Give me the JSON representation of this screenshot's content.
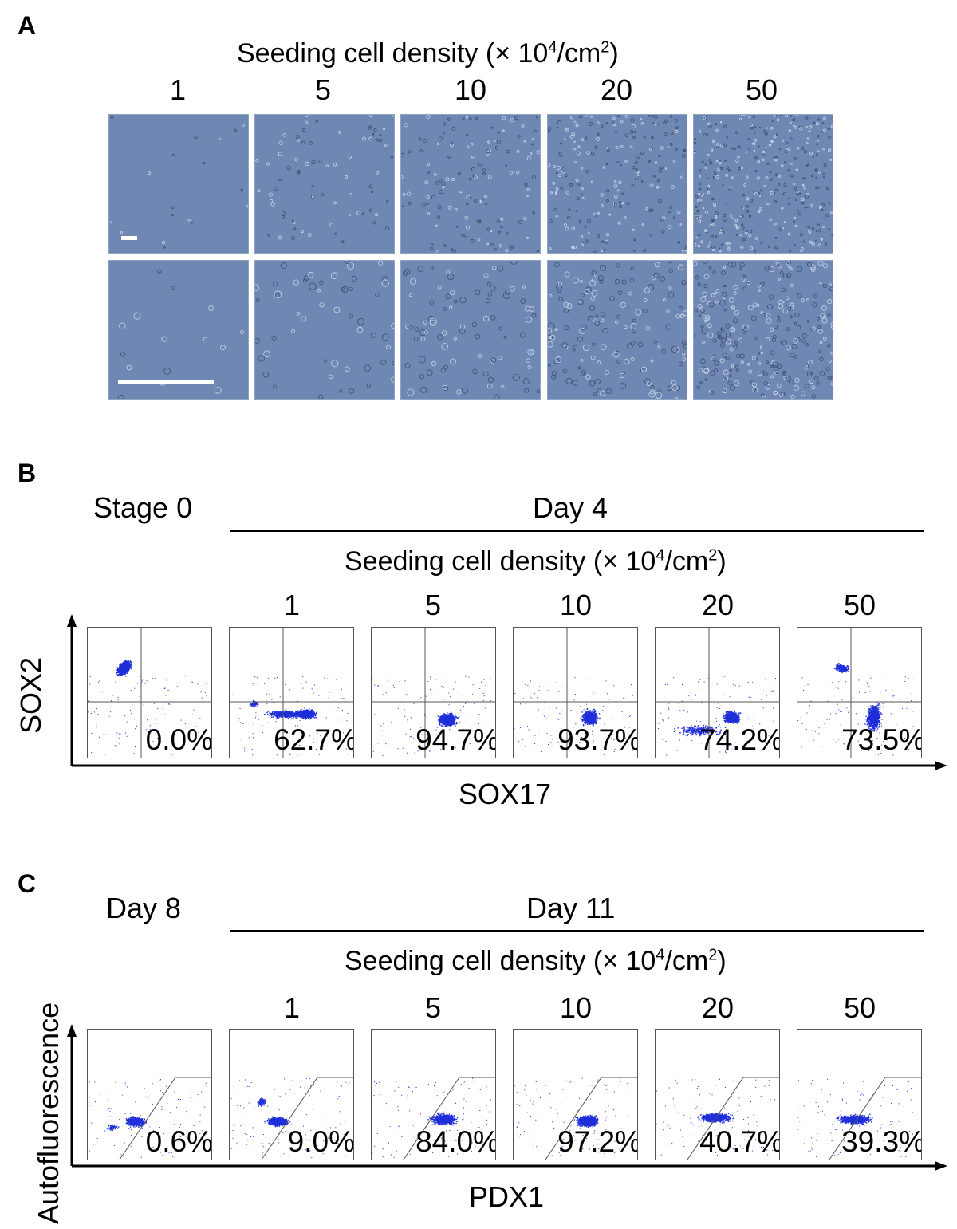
{
  "panelA": {
    "letter": "A",
    "title_main": "Seeding cell density (",
    "title_x": "× 10",
    "title_exp": "4",
    "title_unit": "/cm",
    "title_unit_exp": "2",
    "title_close": ")",
    "densities": [
      "1",
      "5",
      "10",
      "20",
      "50"
    ],
    "scale_bar_color": "#ffffff",
    "image_tint": "#6f87b3"
  },
  "panelB": {
    "letter": "B",
    "left_condition": "Stage 0",
    "right_condition": "Day 4",
    "title_main": "Seeding cell density (",
    "title_x": "× 10",
    "title_exp": "4",
    "title_unit": "/cm",
    "title_unit_exp": "2",
    "title_close": ")",
    "densities": [
      "1",
      "5",
      "10",
      "20",
      "50"
    ],
    "y_axis": "SOX2",
    "x_axis": "SOX17",
    "percentages": [
      "0.0%",
      "62.7%",
      "94.7%",
      "93.7%",
      "74.2%",
      "73.5%"
    ],
    "dot_color": "#1f2fd8"
  },
  "panelC": {
    "letter": "C",
    "left_condition": "Day 8",
    "right_condition": "Day 11",
    "title_main": "Seeding cell density (",
    "title_x": "× 10",
    "title_exp": "4",
    "title_unit": "/cm",
    "title_unit_exp": "2",
    "title_close": ")",
    "densities": [
      "1",
      "5",
      "10",
      "20",
      "50"
    ],
    "y_axis": "Autofluorescence",
    "x_axis": "PDX1",
    "percentages": [
      "0.6%",
      "9.0%",
      "84.0%",
      "97.2%",
      "40.7%",
      "39.3%"
    ],
    "dot_color": "#1f2fd8"
  }
}
